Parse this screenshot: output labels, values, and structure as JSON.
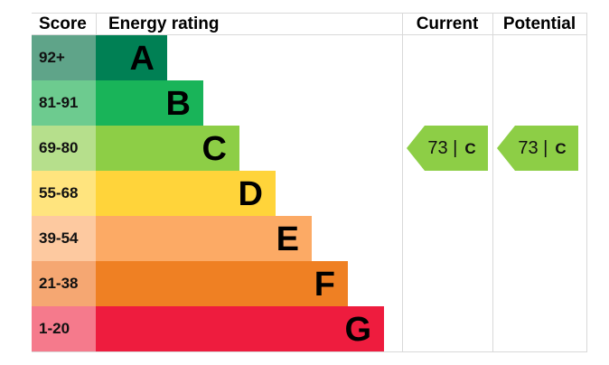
{
  "chart_data": {
    "type": "table",
    "headers": {
      "score": "Score",
      "rating": "Energy rating",
      "current": "Current",
      "potential": "Potential"
    },
    "bands": [
      {
        "score": "92+",
        "letter": "A",
        "color": "#008054",
        "score_color": "#5fa489"
      },
      {
        "score": "81-91",
        "letter": "B",
        "color": "#19b459",
        "score_color": "#6dcb8f"
      },
      {
        "score": "69-80",
        "letter": "C",
        "color": "#8dce46",
        "score_color": "#b6df8c"
      },
      {
        "score": "55-68",
        "letter": "D",
        "color": "#ffd43a",
        "score_color": "#ffe47e"
      },
      {
        "score": "39-54",
        "letter": "E",
        "color": "#fcaa65",
        "score_color": "#fdc9a0"
      },
      {
        "score": "21-38",
        "letter": "F",
        "color": "#ef8023",
        "score_color": "#f5a772"
      },
      {
        "score": "1-20",
        "letter": "G",
        "color": "#ee1c3e",
        "score_color": "#f57a8c"
      }
    ],
    "current": {
      "value": 73,
      "letter": "C",
      "text": "73 |",
      "color": "#8dce46"
    },
    "potential": {
      "value": 73,
      "letter": "C",
      "text": "73 |",
      "color": "#8dce46"
    }
  }
}
